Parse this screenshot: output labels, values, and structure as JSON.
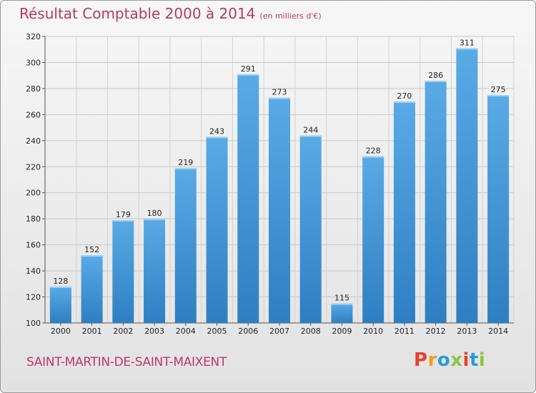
{
  "header": {
    "title": "Résultat Comptable 2000 à 2014",
    "subtitle": "(en milliers d'€)"
  },
  "footer": {
    "place": "SAINT-MARTIN-DE-SAINT-MAIXENT",
    "logo": "Proxiti",
    "logo_colors": [
      "#e8412c",
      "#f29c1f",
      "#2a9ad6",
      "#8cc63f",
      "#e8412c",
      "#2a9ad6",
      "#8cc63f"
    ]
  },
  "colors": {
    "bar": "#3a8fd4",
    "accent": "#b23a67"
  },
  "chart_data": {
    "type": "bar",
    "title": "Résultat Comptable 2000 à 2014",
    "subtitle": "(en milliers d'€)",
    "xlabel": "",
    "ylabel": "",
    "categories": [
      "2000",
      "2001",
      "2002",
      "2003",
      "2004",
      "2005",
      "2006",
      "2007",
      "2008",
      "2009",
      "2010",
      "2011",
      "2012",
      "2013",
      "2014"
    ],
    "values": [
      128,
      152,
      179,
      180,
      219,
      243,
      291,
      273,
      244,
      115,
      228,
      270,
      286,
      311,
      275
    ],
    "ylim": [
      100,
      320
    ],
    "yticks": [
      100,
      120,
      140,
      160,
      180,
      200,
      220,
      240,
      260,
      280,
      300,
      320
    ],
    "grid": true,
    "legend": "none"
  }
}
